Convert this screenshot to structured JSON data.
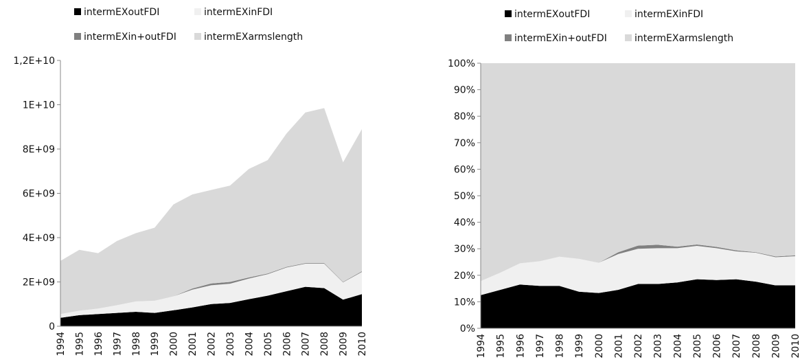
{
  "chart_data": [
    {
      "type": "stacked_area",
      "categories": [
        "1994",
        "1995",
        "1996",
        "1997",
        "1998",
        "1999",
        "2000",
        "2001",
        "2002",
        "2003",
        "2004",
        "2005",
        "2006",
        "2007",
        "2008",
        "2009",
        "2010"
      ],
      "series": [
        {
          "name": "intermEXoutFDI",
          "color": "#000000",
          "values": [
            380000000.0,
            500000000.0,
            550000000.0,
            600000000.0,
            650000000.0,
            600000000.0,
            720000000.0,
            850000000.0,
            1000000000.0,
            1050000000.0,
            1220000000.0,
            1380000000.0,
            1580000000.0,
            1780000000.0,
            1720000000.0,
            1200000000.0,
            1450000000.0
          ]
        },
        {
          "name": "intermEXinFDI",
          "color": "#f0f0f0",
          "values": [
            170000000.0,
            200000000.0,
            250000000.0,
            350000000.0,
            470000000.0,
            550000000.0,
            630000000.0,
            800000000.0,
            850000000.0,
            870000000.0,
            930000000.0,
            970000000.0,
            1070000000.0,
            1040000000.0,
            1100000000.0,
            780000000.0,
            1000000000.0
          ]
        },
        {
          "name": "intermEXin+outFDI",
          "color": "#808080",
          "values": [
            0,
            0,
            0,
            0,
            0,
            0,
            0,
            50000000.0,
            80000000.0,
            80000000.0,
            50000000.0,
            30000000.0,
            30000000.0,
            30000000.0,
            30000000.0,
            20000000.0,
            30000000.0
          ]
        },
        {
          "name": "intermEXarmslength",
          "color": "#d9d9d9",
          "values": [
            2400000000.0,
            2750000000.0,
            2500000000.0,
            2900000000.0,
            3080000000.0,
            3300000000.0,
            4150000000.0,
            4250000000.0,
            4220000000.0,
            4350000000.0,
            4900000000.0,
            5120000000.0,
            6020000000.0,
            6800000000.0,
            7000000000.0,
            5400000000.0,
            6420000000.0
          ]
        }
      ],
      "ylim": [
        0,
        12000000000.0
      ],
      "yticks": [
        0,
        {
          "value": 2000000000.0,
          "label": "2E+09"
        },
        {
          "value": 4000000000.0,
          "label": "4E+09"
        },
        {
          "value": 6000000000.0,
          "label": "6E+09"
        },
        {
          "value": 8000000000.0,
          "label": "8E+09"
        },
        {
          "value": 10000000000.0,
          "label": "1E+10"
        },
        {
          "value": 12000000000.0,
          "label": "1,2E+10"
        }
      ],
      "legend": "top"
    },
    {
      "type": "stacked_area",
      "categories": [
        "1994",
        "1995",
        "1996",
        "1997",
        "1998",
        "1999",
        "2000",
        "2001",
        "2002",
        "2003",
        "2004",
        "2005",
        "2006",
        "2007",
        "2008",
        "2009",
        "2010"
      ],
      "series": [
        {
          "name": "intermEXoutFDI",
          "color": "#000000",
          "values": [
            12.5,
            14.5,
            16.5,
            16,
            16,
            13.8,
            13.3,
            14.5,
            16.7,
            16.7,
            17.3,
            18.5,
            18.2,
            18.5,
            17.6,
            16.2,
            16.2
          ]
        },
        {
          "name": "intermEXinFDI",
          "color": "#f0f0f0",
          "values": [
            5.3,
            6.5,
            8,
            9.3,
            11,
            12.4,
            11.4,
            13.5,
            13.3,
            13.5,
            12.9,
            12.6,
            12,
            10.5,
            10.9,
            10.6,
            11
          ]
        },
        {
          "name": "intermEXin+outFDI",
          "color": "#808080",
          "values": [
            0,
            0,
            0,
            0,
            0,
            0,
            0,
            0.7,
            1.2,
            1.3,
            0.6,
            0.5,
            0.5,
            0.4,
            0.2,
            0.3,
            0.3
          ]
        },
        {
          "name": "intermEXarmslength",
          "color": "#d9d9d9",
          "values": [
            82.2,
            79,
            75.5,
            74.7,
            73,
            73.8,
            75.3,
            71.3,
            68.8,
            68.5,
            69.2,
            68.4,
            69.3,
            70.6,
            71.3,
            72.9,
            72.5
          ]
        }
      ],
      "ylim": [
        0,
        100
      ],
      "yticks": [
        {
          "value": 0,
          "label": "0%"
        },
        {
          "value": 10,
          "label": "10%"
        },
        {
          "value": 20,
          "label": "20%"
        },
        {
          "value": 30,
          "label": "30%"
        },
        {
          "value": 40,
          "label": "40%"
        },
        {
          "value": 50,
          "label": "50%"
        },
        {
          "value": 60,
          "label": "60%"
        },
        {
          "value": 70,
          "label": "70%"
        },
        {
          "value": 80,
          "label": "80%"
        },
        {
          "value": 90,
          "label": "90%"
        },
        {
          "value": 100,
          "label": "100%"
        }
      ],
      "legend": "top"
    }
  ]
}
